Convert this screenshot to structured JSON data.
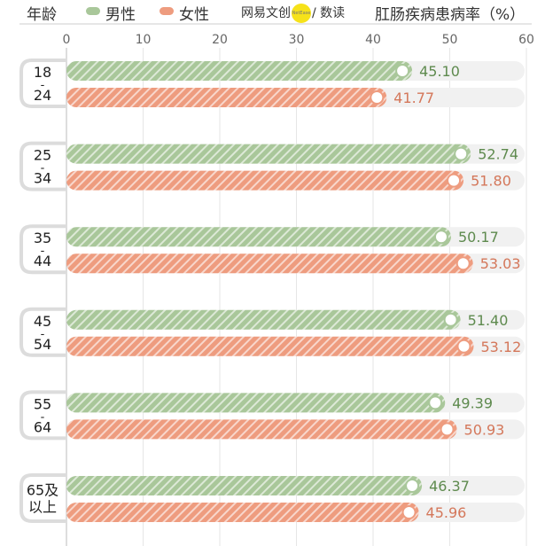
{
  "header": {
    "age_label": "年龄",
    "legend_male": "男性",
    "legend_female": "女性",
    "brand_left": "网易文创",
    "brand_right": "/ 数读",
    "metric_title": "肛肠疾病患病率（%）"
  },
  "colors": {
    "male": "#a9c79a",
    "male_text": "#5e8a4e",
    "female": "#ee9c7f",
    "female_text": "#d4775a",
    "track": "#f1f1f1",
    "grid": "#e6e6e6"
  },
  "chart_data": {
    "type": "bar",
    "orientation": "horizontal",
    "xlim": [
      0,
      60
    ],
    "xticks": [
      "0",
      "10",
      "20",
      "30",
      "40",
      "50",
      "60"
    ],
    "categories": [
      [
        "18",
        "-",
        "24"
      ],
      [
        "25",
        "-",
        "34"
      ],
      [
        "35",
        "-",
        "44"
      ],
      [
        "45",
        "-",
        "54"
      ],
      [
        "55",
        "-",
        "64"
      ],
      [
        "65及",
        "以上"
      ]
    ],
    "series": [
      {
        "name": "男性",
        "values": [
          45.1,
          52.74,
          50.17,
          51.4,
          49.39,
          46.37
        ],
        "labels": [
          "45.10",
          "52.74",
          "50.17",
          "51.40",
          "49.39",
          "46.37"
        ]
      },
      {
        "name": "女性",
        "values": [
          41.77,
          51.8,
          53.03,
          53.12,
          50.93,
          45.96
        ],
        "labels": [
          "41.77",
          "51.80",
          "53.03",
          "53.12",
          "50.93",
          "45.96"
        ]
      }
    ]
  }
}
